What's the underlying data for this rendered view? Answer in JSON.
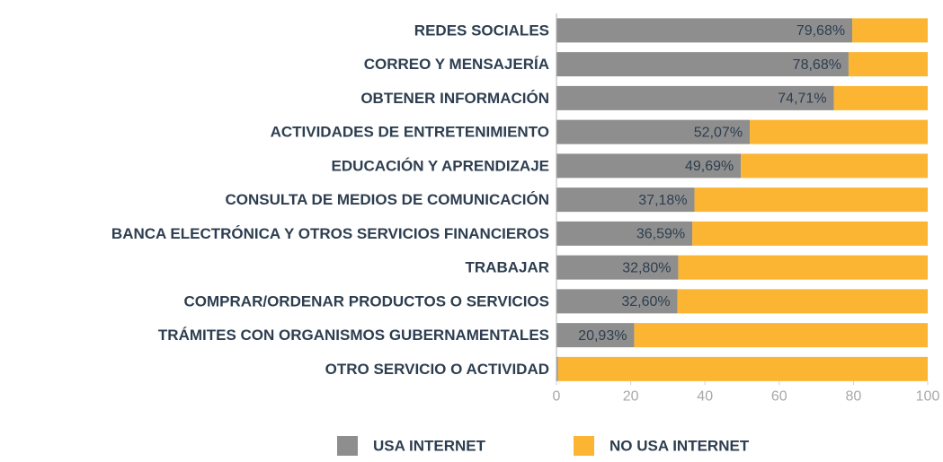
{
  "chart_data": {
    "type": "bar",
    "orientation": "horizontal",
    "stacked": true,
    "categories": [
      "REDES SOCIALES",
      "CORREO Y MENSAJERÍA",
      "OBTENER INFORMACIÓN",
      "ACTIVIDADES DE ENTRETENIMIENTO",
      "EDUCACIÓN Y APRENDIZAJE",
      "CONSULTA DE MEDIOS DE COMUNICACIÓN",
      "BANCA ELECTRÓNICA Y OTROS SERVICIOS FINANCIEROS",
      "TRABAJAR",
      "COMPRAR/ORDENAR PRODUCTOS O SERVICIOS",
      "TRÁMITES CON ORGANISMOS GUBERNAMENTALES",
      "OTRO SERVICIO O ACTIVIDAD"
    ],
    "series": [
      {
        "name": "USA INTERNET",
        "color": "#8e8e8e",
        "values": [
          79.68,
          78.68,
          74.71,
          52.07,
          49.69,
          37.18,
          36.59,
          32.8,
          32.6,
          20.93,
          0.41
        ],
        "value_labels": [
          "79,68%",
          "78,68%",
          "74,71%",
          "52,07%",
          "49,69%",
          "37,18%",
          "36,59%",
          "32,80%",
          "32,60%",
          "20,93%",
          "0,41%"
        ]
      },
      {
        "name": "NO USA INTERNET",
        "color": "#fbb532",
        "values": [
          20.32,
          21.32,
          25.29,
          47.93,
          50.31,
          62.82,
          63.41,
          67.2,
          67.4,
          79.07,
          99.59
        ]
      }
    ],
    "xlim": [
      0,
      100
    ],
    "xticks": [
      0,
      20,
      40,
      60,
      80,
      100
    ],
    "legend": "bottom"
  }
}
